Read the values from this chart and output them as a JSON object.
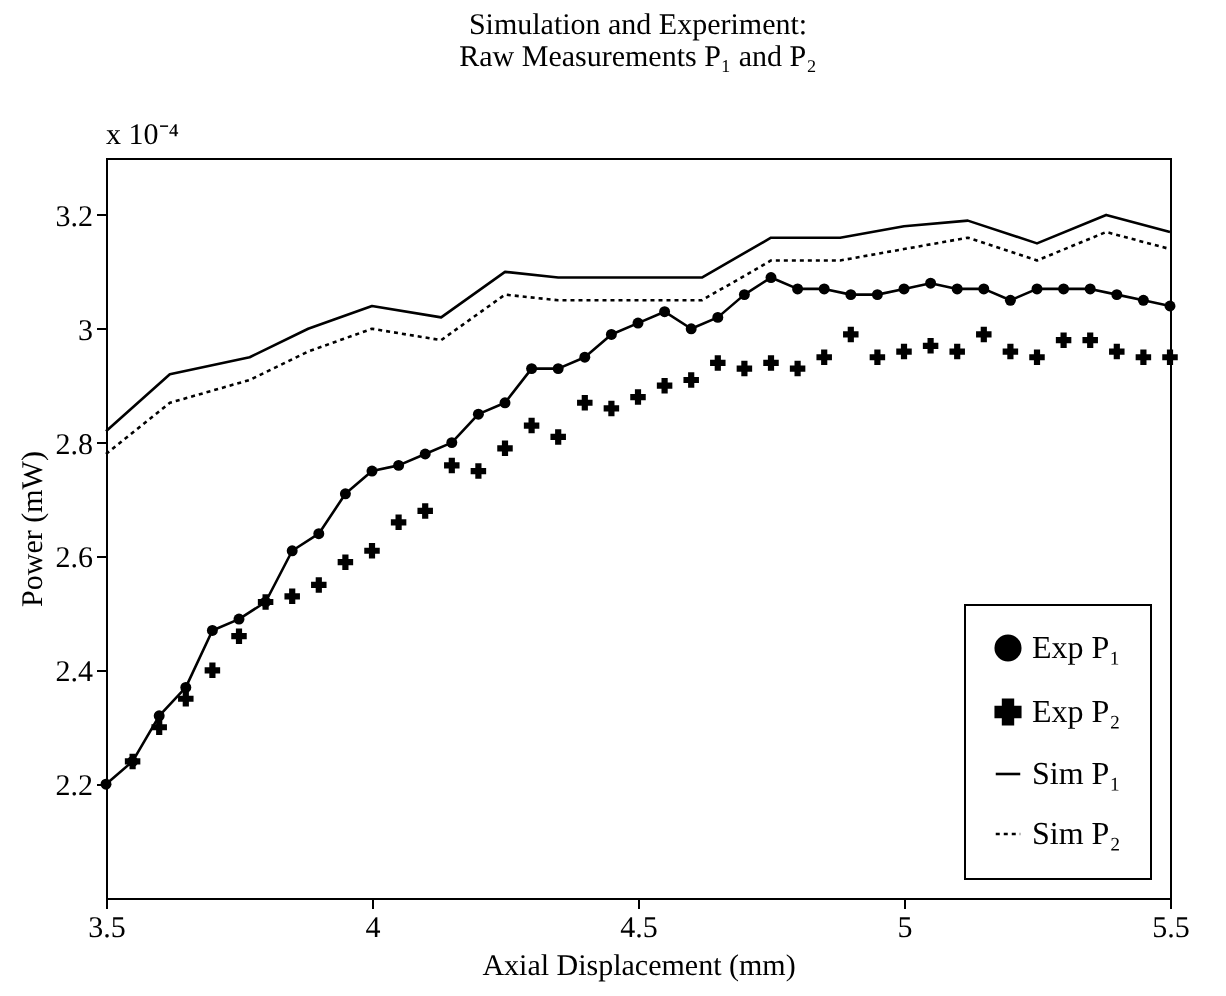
{
  "chart_data": {
    "type": "line",
    "title": "Simulation and Experiment:",
    "subtitle": "Raw Measurements P₁ and P₂",
    "xlabel": "Axial Displacement (mm)",
    "ylabel": "Power (mW)",
    "annotations": [
      "x 10⁻⁴"
    ],
    "xlim": [
      3.5,
      5.5
    ],
    "xticks": [
      3.5,
      4,
      4.5,
      5,
      5.5
    ],
    "ylim": [
      2.0,
      3.3
    ],
    "yticks": [
      2.2,
      2.4,
      2.6,
      2.8,
      3,
      3.2
    ],
    "grid": false,
    "legend": "bottom right",
    "series": [
      {
        "name": "Exp P₁",
        "marker": "circle",
        "line_style": "solid",
        "color": "#000000",
        "x": [
          3.5,
          3.55,
          3.6,
          3.65,
          3.7,
          3.75,
          3.8,
          3.85,
          3.9,
          3.95,
          4.0,
          4.05,
          4.1,
          4.15,
          4.2,
          4.25,
          4.3,
          4.35,
          4.4,
          4.45,
          4.5,
          4.55,
          4.6,
          4.65,
          4.7,
          4.75,
          4.8,
          4.85,
          4.9,
          4.95,
          5.0,
          5.05,
          5.1,
          5.15,
          5.2,
          5.25,
          5.3,
          5.35,
          5.4,
          5.45,
          5.5
        ],
        "values": [
          2.2,
          2.24,
          2.32,
          2.37,
          2.47,
          2.49,
          2.52,
          2.61,
          2.64,
          2.71,
          2.75,
          2.76,
          2.78,
          2.8,
          2.85,
          2.87,
          2.93,
          2.93,
          2.95,
          2.99,
          3.01,
          3.03,
          3.0,
          3.02,
          3.06,
          3.09,
          3.07,
          3.07,
          3.06,
          3.06,
          3.07,
          3.08,
          3.07,
          3.07,
          3.05,
          3.07,
          3.07,
          3.07,
          3.06,
          3.05,
          3.04
        ]
      },
      {
        "name": "Exp P₂",
        "type": "scatter",
        "marker": "cross",
        "color": "#000000",
        "x": [
          3.55,
          3.6,
          3.65,
          3.7,
          3.75,
          3.8,
          3.85,
          3.9,
          3.95,
          4.0,
          4.05,
          4.1,
          4.15,
          4.2,
          4.25,
          4.3,
          4.35,
          4.4,
          4.45,
          4.5,
          4.55,
          4.6,
          4.65,
          4.7,
          4.75,
          4.8,
          4.85,
          4.9,
          4.95,
          5.0,
          5.05,
          5.1,
          5.15,
          5.2,
          5.25,
          5.3,
          5.35,
          5.4,
          5.45,
          5.5
        ],
        "values": [
          2.24,
          2.3,
          2.35,
          2.4,
          2.46,
          2.52,
          2.53,
          2.55,
          2.59,
          2.61,
          2.66,
          2.68,
          2.76,
          2.75,
          2.79,
          2.83,
          2.81,
          2.87,
          2.86,
          2.88,
          2.9,
          2.91,
          2.94,
          2.93,
          2.94,
          2.93,
          2.95,
          2.99,
          2.95,
          2.96,
          2.97,
          2.96,
          2.99,
          2.96,
          2.95,
          2.98,
          2.98,
          2.96,
          2.95,
          2.95
        ]
      },
      {
        "name": "Sim P₁",
        "marker": "none",
        "line_style": "solid",
        "color": "#000000",
        "x": [
          3.5,
          3.62,
          3.77,
          3.88,
          4.0,
          4.13,
          4.25,
          4.35,
          4.62,
          4.75,
          4.88,
          5.0,
          5.12,
          5.25,
          5.38,
          5.5
        ],
        "values": [
          2.82,
          2.92,
          2.95,
          3.0,
          3.04,
          3.02,
          3.1,
          3.09,
          3.09,
          3.16,
          3.16,
          3.18,
          3.19,
          3.15,
          3.2,
          3.17
        ]
      },
      {
        "name": "Sim P₂",
        "marker": "none",
        "line_style": "dotted",
        "color": "#000000",
        "x": [
          3.5,
          3.62,
          3.77,
          3.88,
          4.0,
          4.13,
          4.25,
          4.35,
          4.62,
          4.75,
          4.88,
          5.0,
          5.12,
          5.25,
          5.38,
          5.5
        ],
        "values": [
          2.78,
          2.87,
          2.91,
          2.96,
          3.0,
          2.98,
          3.06,
          3.05,
          3.05,
          3.12,
          3.12,
          3.14,
          3.16,
          3.12,
          3.17,
          3.14
        ]
      }
    ]
  }
}
